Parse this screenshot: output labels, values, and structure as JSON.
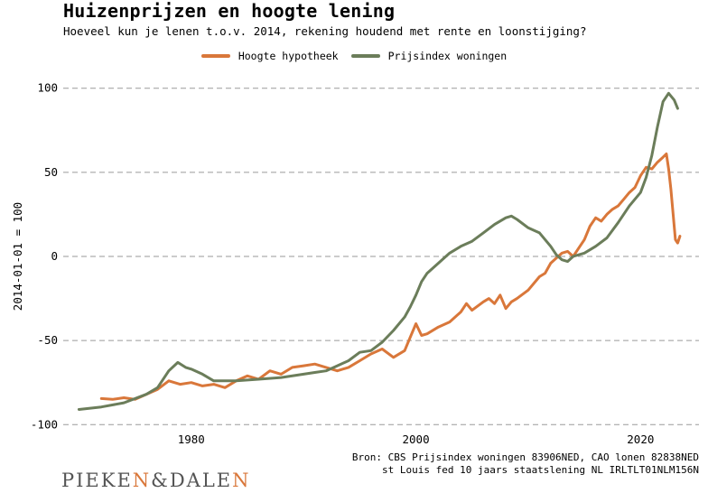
{
  "chart_data": {
    "type": "line",
    "title": "Huizenprijzen en hoogte lening",
    "subtitle": "Hoeveel kun je lenen t.o.v. 2014, rekening houdend met rente en loonstijging?",
    "ylabel": "2014-01-01 = 100",
    "xlabel": "",
    "xlim": [
      1968.6,
      2025.2
    ],
    "ylim": [
      -102,
      102
    ],
    "xticks": [
      1980,
      2000,
      2020
    ],
    "yticks": [
      -100,
      -50,
      0,
      50,
      100
    ],
    "grid": "horizontal dashed",
    "legend_position": "top-center",
    "series": [
      {
        "name": "Hoogte hypotheek",
        "color": "#d9773a",
        "points": [
          [
            1972.0,
            -84.5
          ],
          [
            1973.0,
            -85
          ],
          [
            1974.0,
            -84
          ],
          [
            1975.0,
            -85
          ],
          [
            1976.0,
            -82
          ],
          [
            1977.0,
            -79
          ],
          [
            1978.0,
            -74
          ],
          [
            1979.0,
            -76
          ],
          [
            1980.0,
            -75
          ],
          [
            1981.0,
            -77
          ],
          [
            1982.0,
            -76
          ],
          [
            1983.0,
            -78
          ],
          [
            1984.0,
            -74
          ],
          [
            1985.0,
            -71
          ],
          [
            1986.0,
            -73
          ],
          [
            1987.0,
            -68
          ],
          [
            1988.0,
            -70
          ],
          [
            1989.0,
            -66
          ],
          [
            1990.0,
            -65
          ],
          [
            1991.0,
            -64
          ],
          [
            1992.0,
            -66
          ],
          [
            1993.0,
            -68
          ],
          [
            1994.0,
            -66
          ],
          [
            1995.0,
            -62
          ],
          [
            1996.0,
            -58
          ],
          [
            1997.0,
            -55
          ],
          [
            1998.0,
            -60
          ],
          [
            1999.0,
            -56
          ],
          [
            1999.5,
            -48
          ],
          [
            2000.0,
            -40
          ],
          [
            2000.5,
            -47
          ],
          [
            2001.0,
            -46
          ],
          [
            2002.0,
            -42
          ],
          [
            2003.0,
            -39
          ],
          [
            2004.0,
            -33
          ],
          [
            2004.5,
            -28
          ],
          [
            2005.0,
            -32
          ],
          [
            2006.0,
            -27
          ],
          [
            2006.5,
            -25
          ],
          [
            2007.0,
            -28
          ],
          [
            2007.5,
            -23
          ],
          [
            2008.0,
            -31
          ],
          [
            2008.5,
            -27
          ],
          [
            2009.0,
            -25
          ],
          [
            2010.0,
            -20
          ],
          [
            2011.0,
            -12
          ],
          [
            2011.5,
            -10
          ],
          [
            2012.0,
            -4
          ],
          [
            2012.5,
            -1
          ],
          [
            2013.0,
            2
          ],
          [
            2013.5,
            3
          ],
          [
            2014.0,
            0
          ],
          [
            2014.5,
            5
          ],
          [
            2015.0,
            10
          ],
          [
            2015.5,
            18
          ],
          [
            2016.0,
            23
          ],
          [
            2016.5,
            21
          ],
          [
            2017.0,
            25
          ],
          [
            2017.5,
            28
          ],
          [
            2018.0,
            30
          ],
          [
            2018.5,
            34
          ],
          [
            2019.0,
            38
          ],
          [
            2019.5,
            41
          ],
          [
            2020.0,
            48
          ],
          [
            2020.5,
            53
          ],
          [
            2021.0,
            52
          ],
          [
            2021.5,
            56
          ],
          [
            2022.0,
            59
          ],
          [
            2022.3,
            61
          ],
          [
            2022.5,
            52
          ],
          [
            2022.7,
            40
          ],
          [
            2022.9,
            25
          ],
          [
            2023.1,
            10
          ],
          [
            2023.3,
            8
          ],
          [
            2023.5,
            12
          ]
        ]
      },
      {
        "name": "Prijsindex woningen",
        "color": "#6b7d5a",
        "points": [
          [
            1970.0,
            -91
          ],
          [
            1972.0,
            -89.5
          ],
          [
            1974.0,
            -87
          ],
          [
            1976.0,
            -82
          ],
          [
            1977.0,
            -78
          ],
          [
            1978.0,
            -68
          ],
          [
            1978.8,
            -63
          ],
          [
            1979.5,
            -66
          ],
          [
            1980.0,
            -67
          ],
          [
            1981.0,
            -70
          ],
          [
            1982.0,
            -74
          ],
          [
            1984.0,
            -74
          ],
          [
            1986.0,
            -73
          ],
          [
            1988.0,
            -72
          ],
          [
            1990.0,
            -70
          ],
          [
            1991.0,
            -69
          ],
          [
            1992.0,
            -68
          ],
          [
            1993.0,
            -65
          ],
          [
            1994.0,
            -62
          ],
          [
            1995.0,
            -57
          ],
          [
            1996.0,
            -56
          ],
          [
            1997.0,
            -51
          ],
          [
            1998.0,
            -44
          ],
          [
            1999.0,
            -36
          ],
          [
            1999.5,
            -30
          ],
          [
            2000.0,
            -23
          ],
          [
            2000.5,
            -15
          ],
          [
            2001.0,
            -10
          ],
          [
            2002.0,
            -4
          ],
          [
            2003.0,
            2
          ],
          [
            2004.0,
            6
          ],
          [
            2005.0,
            9
          ],
          [
            2006.0,
            14
          ],
          [
            2007.0,
            19
          ],
          [
            2008.0,
            23
          ],
          [
            2008.5,
            24
          ],
          [
            2009.0,
            22
          ],
          [
            2010.0,
            17
          ],
          [
            2011.0,
            14
          ],
          [
            2012.0,
            6
          ],
          [
            2012.5,
            1
          ],
          [
            2013.0,
            -2
          ],
          [
            2013.5,
            -3
          ],
          [
            2014.0,
            0
          ],
          [
            2015.0,
            2
          ],
          [
            2016.0,
            6
          ],
          [
            2017.0,
            11
          ],
          [
            2018.0,
            20
          ],
          [
            2019.0,
            30
          ],
          [
            2020.0,
            38
          ],
          [
            2020.5,
            47
          ],
          [
            2021.0,
            60
          ],
          [
            2021.5,
            77
          ],
          [
            2022.0,
            92
          ],
          [
            2022.5,
            97
          ],
          [
            2023.0,
            93
          ],
          [
            2023.3,
            88
          ]
        ]
      }
    ]
  },
  "source": {
    "line1": "Bron: CBS Prijsindex woningen 83906NED, CAO lonen 82838NED",
    "line2": "st Louis fed 10 jaars staatslening NL IRLTLT01NLM156N"
  },
  "logo": {
    "part1": "PIEKE",
    "part2": "N",
    "part3": "&DALE",
    "part4": "N"
  }
}
